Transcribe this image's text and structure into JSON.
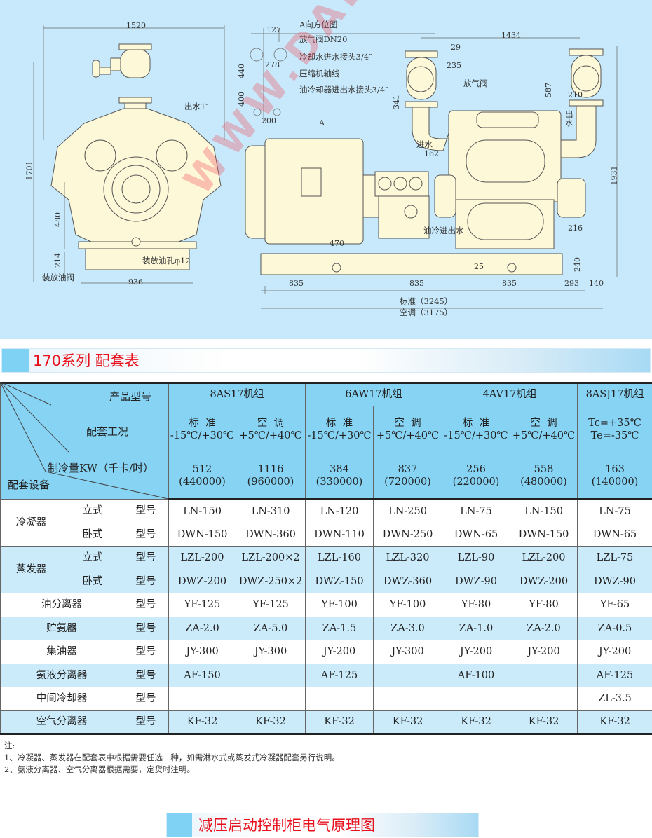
{
  "drawing": {
    "watermark": "WWW.DALENG.CC",
    "left_view": {
      "dim_width": "1520",
      "dim_height": "1701",
      "dim_480": "480",
      "dim_214": "214",
      "dim_base": "936",
      "outlet": "出水1″",
      "drain_hole": "装放油孔φ12",
      "drain_valve": "装放油阀"
    },
    "a_view": {
      "dim_127": "127",
      "dim_278": "278",
      "dim_440": "440",
      "dim_400": "400",
      "dim_200": "200",
      "title": "A向方位图",
      "vent": "放气阀DN20",
      "cool_in": "冷却水进水接头3/4″",
      "axis": "压缩机轴线",
      "oil_cool": "油冷却器进出水接头3/4″",
      "arrow_a": "A"
    },
    "side_view": {
      "dim_1434": "1434",
      "dim_29": "29",
      "dim_235": "235",
      "dim_341": "341",
      "vent": "放气阀",
      "dim_587": "587",
      "dim_210": "210",
      "outlet": "出水",
      "inlet": "进水",
      "dim_162": "162",
      "dim_1931": "1931",
      "oil_water": "油冷进出水",
      "dim_216": "216",
      "dim_470": "470",
      "dim_25": "25",
      "dim_240": "240",
      "dim_835a": "835",
      "dim_835b": "835",
      "dim_835c": "835",
      "dim_293": "293",
      "dim_140": "140",
      "total_std": "标准（3245）",
      "total_ac": "空调（3175）"
    }
  },
  "section_title": "170系列  配套表",
  "table": {
    "corner": {
      "model": "产品型号",
      "condition": "配套工况",
      "capacity": "制冷量KW（千卡/时）",
      "equipment": "配套设备"
    },
    "groups": [
      "8AS17机组",
      "6AW17机组",
      "4AV17机组",
      "8ASJ17机组"
    ],
    "conditions": [
      {
        "name": "标  准",
        "range": "-15℃/+30℃"
      },
      {
        "name": "空  调",
        "range": "+5℃/+40℃"
      },
      {
        "name": "标  准",
        "range": "-15℃/+30℃"
      },
      {
        "name": "空  调",
        "range": "+5℃/+40℃"
      },
      {
        "name": "标  准",
        "range": "-15℃/+30℃"
      },
      {
        "name": "空  调",
        "range": "+5℃/+40℃"
      },
      {
        "name": "Tc=+35℃",
        "range": "Te=-35℃"
      }
    ],
    "capacity": [
      {
        "kw": "512",
        "kcal": "(440000)"
      },
      {
        "kw": "1116",
        "kcal": "(960000)"
      },
      {
        "kw": "384",
        "kcal": "(330000)"
      },
      {
        "kw": "837",
        "kcal": "(720000)"
      },
      {
        "kw": "256",
        "kcal": "(220000)"
      },
      {
        "kw": "558",
        "kcal": "(480000)"
      },
      {
        "kw": "163",
        "kcal": "(140000)"
      }
    ],
    "type_label": "型号",
    "condenser": {
      "name": "冷凝器",
      "vertical": "立式",
      "horizontal": "卧式",
      "v_values": [
        "LN-150",
        "LN-310",
        "LN-120",
        "LN-250",
        "LN-75",
        "LN-150",
        "LN-75"
      ],
      "h_values": [
        "DWN-150",
        "DWN-360",
        "DWN-110",
        "DWN-250",
        "DWN-65",
        "DWN-150",
        "DWN-65"
      ]
    },
    "evaporator": {
      "name": "蒸发器",
      "vertical": "立式",
      "horizontal": "卧式",
      "v_values": [
        "LZL-200",
        "LZL-200×2",
        "LZL-160",
        "LZL-320",
        "LZL-90",
        "LZL-200",
        "LZL-75"
      ],
      "h_values": [
        "DWZ-200",
        "DWZ-250×2",
        "DWZ-150",
        "DWZ-360",
        "DWZ-90",
        "DWZ-200",
        "DWZ-90"
      ]
    },
    "rows": [
      {
        "name": "油分离器",
        "values": [
          "YF-125",
          "YF-125",
          "YF-100",
          "YF-100",
          "YF-80",
          "YF-80",
          "YF-65"
        ]
      },
      {
        "name": "贮氨器",
        "values": [
          "ZA-2.0",
          "ZA-5.0",
          "ZA-1.5",
          "ZA-3.0",
          "ZA-1.0",
          "ZA-2.0",
          "ZA-0.5"
        ]
      },
      {
        "name": "集油器",
        "values": [
          "JY-300",
          "JY-300",
          "JY-200",
          "JY-300",
          "JY-200",
          "JY-200",
          "JY-200"
        ]
      },
      {
        "name": "氨液分离器",
        "values": [
          "AF-150",
          "",
          "AF-125",
          "",
          "AF-100",
          "",
          "AF-125"
        ]
      },
      {
        "name": "中间冷却器",
        "values": [
          "",
          "",
          "",
          "",
          "",
          "",
          "ZL-3.5"
        ]
      },
      {
        "name": "空气分离器",
        "values": [
          "KF-32",
          "KF-32",
          "KF-32",
          "KF-32",
          "KF-32",
          "KF-32",
          "KF-32"
        ]
      }
    ]
  },
  "notes": {
    "title": "注:",
    "items": [
      "1、冷凝器、蒸发器在配套表中根据需要任选一种，如需淋水式或蒸发式冷凝器配套另行说明。",
      "2、氨液分离器、空气分离器根据需要，定货时注明。"
    ]
  },
  "next_section_title": "减压启动控制柜电气原理图",
  "colors": {
    "drawing_bg": "#c7e9fb",
    "machine_fill": "#fdf8d8",
    "header_blue": "#86d3f4",
    "row_blue": "#cbebfa",
    "title_red": "#e8101c"
  }
}
